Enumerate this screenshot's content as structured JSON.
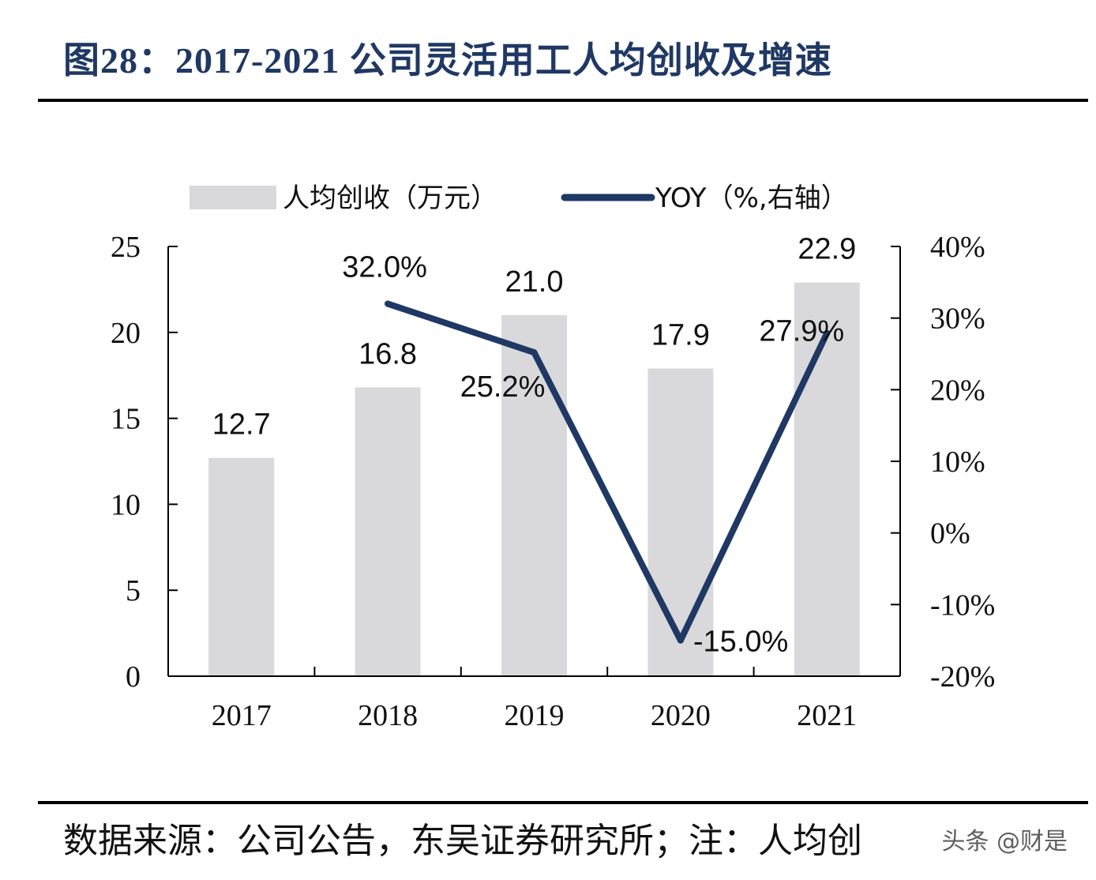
{
  "title": "图28：2017-2021 公司灵活用工人均创收及增速",
  "source_note": "数据来源：公司公告，东吴证券研究所；注：人均创",
  "watermark": "头条 @财是",
  "colors": {
    "title": "#1f3864",
    "bar": "#d9d9db",
    "line": "#1f3864",
    "axis": "#000000"
  },
  "chart_data": {
    "type": "bar",
    "categories": [
      "2017",
      "2018",
      "2019",
      "2020",
      "2021"
    ],
    "series": [
      {
        "name": "人均创收（万元）",
        "type": "bar",
        "axis": "left",
        "values": [
          12.7,
          16.8,
          21.0,
          17.9,
          22.9
        ],
        "labels": [
          "12.7",
          "16.8",
          "21.0",
          "17.9",
          "22.9"
        ]
      },
      {
        "name": "YOY（%,右轴）",
        "type": "line",
        "axis": "right",
        "x": [
          "2018",
          "2019",
          "2020",
          "2021"
        ],
        "values": [
          32.0,
          25.2,
          -15.0,
          27.9
        ],
        "labels": [
          "32.0%",
          "25.2%",
          "-15.0%",
          "27.9%"
        ]
      }
    ],
    "y_left": {
      "min": 0,
      "max": 25,
      "ticks": [
        "0",
        "5",
        "10",
        "15",
        "20",
        "25"
      ]
    },
    "y_right": {
      "min": -20,
      "max": 40,
      "ticks": [
        "-20%",
        "-10%",
        "0%",
        "10%",
        "20%",
        "30%",
        "40%"
      ]
    },
    "legend_position": "top",
    "grid": false
  }
}
